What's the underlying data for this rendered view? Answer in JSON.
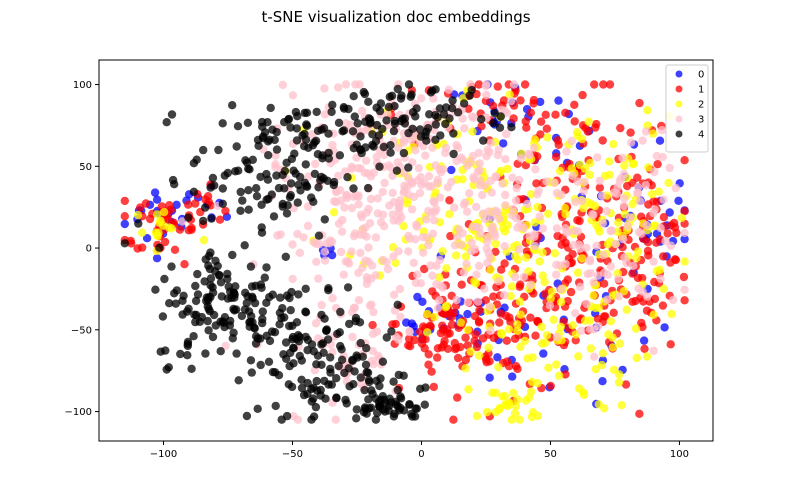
{
  "chart_data": {
    "type": "scatter",
    "title": "t-SNE visualization doc embeddings",
    "xlabel": "",
    "ylabel": "",
    "xlim": [
      -125,
      113
    ],
    "ylim": [
      -118,
      115
    ],
    "xticks": [
      -100,
      -50,
      0,
      50,
      100
    ],
    "yticks": [
      -100,
      -50,
      0,
      50,
      100
    ],
    "xtick_labels": [
      "−100",
      "−50",
      "0",
      "50",
      "100"
    ],
    "ytick_labels": [
      "−100",
      "−50",
      "0",
      "50",
      "100"
    ],
    "grid": false,
    "legend_position": "top-right",
    "series": [
      {
        "name": "0",
        "color": "#0000ff",
        "clusters": [
          {
            "cx": -100,
            "cy": 20,
            "sx": 8,
            "sy": 10,
            "n": 20
          },
          {
            "cx": -80,
            "cy": 28,
            "sx": 4,
            "sy": 5,
            "n": 6
          },
          {
            "cx": 10,
            "cy": -45,
            "sx": 8,
            "sy": 8,
            "n": 22
          },
          {
            "cx": 50,
            "cy": -55,
            "sx": 25,
            "sy": 20,
            "n": 30
          },
          {
            "cx": 55,
            "cy": 40,
            "sx": 25,
            "sy": 30,
            "n": 30
          },
          {
            "cx": 85,
            "cy": 10,
            "sx": 10,
            "sy": 20,
            "n": 20
          },
          {
            "cx": 20,
            "cy": 85,
            "sx": 20,
            "sy": 8,
            "n": 12
          },
          {
            "cx": -35,
            "cy": 0,
            "sx": 3,
            "sy": 4,
            "n": 4
          }
        ]
      },
      {
        "name": "1",
        "color": "#ff0000",
        "clusters": [
          {
            "cx": -100,
            "cy": 15,
            "sx": 9,
            "sy": 12,
            "n": 40
          },
          {
            "cx": -85,
            "cy": 25,
            "sx": 4,
            "sy": 6,
            "n": 12
          },
          {
            "cx": 10,
            "cy": -50,
            "sx": 10,
            "sy": 12,
            "n": 60
          },
          {
            "cx": 35,
            "cy": -45,
            "sx": 22,
            "sy": 22,
            "n": 110
          },
          {
            "cx": 70,
            "cy": -25,
            "sx": 18,
            "sy": 22,
            "n": 60
          },
          {
            "cx": 60,
            "cy": 35,
            "sx": 22,
            "sy": 28,
            "n": 90
          },
          {
            "cx": 85,
            "cy": 5,
            "sx": 10,
            "sy": 22,
            "n": 50
          },
          {
            "cx": 30,
            "cy": 85,
            "sx": 20,
            "sy": 10,
            "n": 40
          }
        ]
      },
      {
        "name": "2",
        "color": "#ffff00",
        "clusters": [
          {
            "cx": -100,
            "cy": 10,
            "sx": 9,
            "sy": 12,
            "n": 15
          },
          {
            "cx": 20,
            "cy": 40,
            "sx": 25,
            "sy": 30,
            "n": 110
          },
          {
            "cx": 45,
            "cy": -50,
            "sx": 22,
            "sy": 25,
            "n": 100
          },
          {
            "cx": 75,
            "cy": 20,
            "sx": 15,
            "sy": 30,
            "n": 70
          },
          {
            "cx": 35,
            "cy": -95,
            "sx": 6,
            "sy": 6,
            "n": 25
          },
          {
            "cx": 30,
            "cy": 5,
            "sx": 15,
            "sy": 12,
            "n": 40
          }
        ]
      },
      {
        "name": "3",
        "color": "#ffc0cb",
        "clusters": [
          {
            "cx": -25,
            "cy": 10,
            "sx": 18,
            "sy": 40,
            "n": 170
          },
          {
            "cx": 0,
            "cy": 50,
            "sx": 22,
            "sy": 30,
            "n": 170
          },
          {
            "cx": 25,
            "cy": 20,
            "sx": 20,
            "sy": 25,
            "n": 120
          },
          {
            "cx": -25,
            "cy": -60,
            "sx": 8,
            "sy": 15,
            "n": 30
          },
          {
            "cx": 65,
            "cy": -20,
            "sx": 15,
            "sy": 20,
            "n": 50
          },
          {
            "cx": 80,
            "cy": 30,
            "sx": 10,
            "sy": 20,
            "n": 40
          }
        ]
      },
      {
        "name": "4",
        "color": "#000000",
        "clusters": [
          {
            "cx": -60,
            "cy": 45,
            "sx": 15,
            "sy": 20,
            "n": 110
          },
          {
            "cx": -30,
            "cy": 70,
            "sx": 18,
            "sy": 12,
            "n": 70
          },
          {
            "cx": -75,
            "cy": -35,
            "sx": 14,
            "sy": 18,
            "n": 130
          },
          {
            "cx": -45,
            "cy": -55,
            "sx": 15,
            "sy": 20,
            "n": 90
          },
          {
            "cx": -30,
            "cy": -85,
            "sx": 12,
            "sy": 10,
            "n": 60
          },
          {
            "cx": -10,
            "cy": -97,
            "sx": 6,
            "sy": 4,
            "n": 35
          },
          {
            "cx": -10,
            "cy": 85,
            "sx": 10,
            "sy": 8,
            "n": 30
          },
          {
            "cx": 10,
            "cy": 80,
            "sx": 10,
            "sy": 10,
            "n": 30
          }
        ]
      }
    ]
  }
}
